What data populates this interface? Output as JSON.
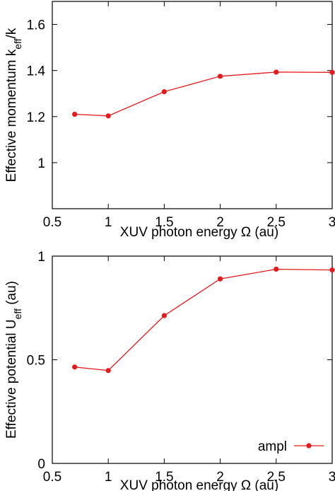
{
  "chart_data": [
    {
      "type": "line",
      "xlabel": "XUV photon energy Ω (au)",
      "ylabel": "Effective  momentum k",
      "ylabel_sub": "eff",
      "ylabel_suffix": "/k",
      "xlim": [
        0.5,
        3
      ],
      "ylim": [
        0.8,
        1.7
      ],
      "xticks": [
        0.5,
        1,
        1.5,
        2,
        2.5,
        3
      ],
      "xtick_labels": [
        "0.5",
        "1",
        "1.5",
        "2",
        "2.5",
        "3"
      ],
      "yticks": [
        1.0,
        1.2,
        1.4,
        1.6
      ],
      "ytick_labels": [
        "1",
        "1.2",
        "1.4",
        "1.6"
      ],
      "series": [
        {
          "x": [
            0.7,
            1.0,
            1.5,
            2.0,
            2.5,
            3.0
          ],
          "y": [
            1.21,
            1.203,
            1.308,
            1.375,
            1.393,
            1.392
          ],
          "color": "#e41a1c"
        }
      ]
    },
    {
      "type": "line",
      "xlabel": "XUV photon energy Ω (au)",
      "ylabel": "Effective potential  U",
      "ylabel_sub": "eff",
      "ylabel_suffix": " (au)",
      "xlim": [
        0.5,
        3
      ],
      "ylim": [
        0,
        1
      ],
      "xticks": [
        0.5,
        1,
        1.5,
        2,
        2.5,
        3
      ],
      "xtick_labels": [
        "0.5",
        "1",
        "1.5",
        "2",
        "2.5",
        "3"
      ],
      "yticks": [
        0,
        0.5,
        1
      ],
      "ytick_labels": [
        "0",
        "0.5",
        "1"
      ],
      "legend": {
        "label": "ampl",
        "position": "bottom-right"
      },
      "series": [
        {
          "name": "ampl",
          "x": [
            0.7,
            1.0,
            1.5,
            2.0,
            2.5,
            3.0
          ],
          "y": [
            0.465,
            0.448,
            0.713,
            0.89,
            0.937,
            0.933
          ],
          "color": "#e41a1c"
        }
      ]
    }
  ]
}
